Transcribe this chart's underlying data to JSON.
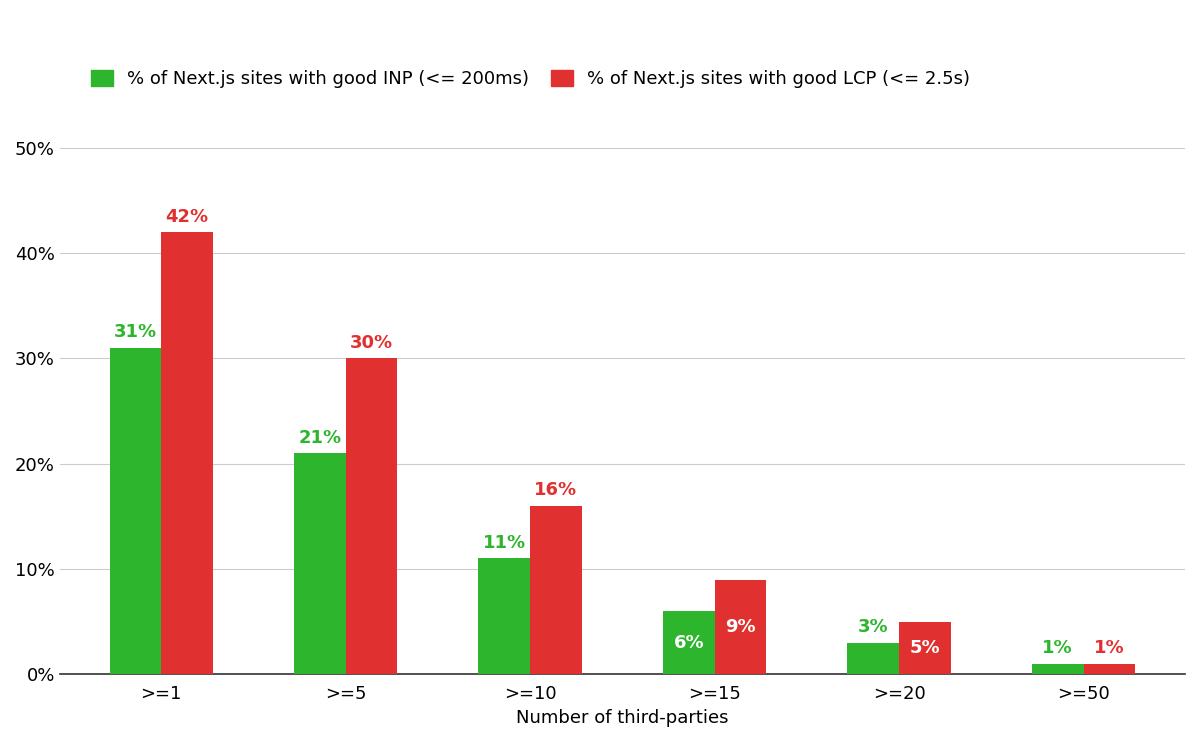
{
  "categories": [
    ">=1",
    ">=5",
    ">=10",
    ">=15",
    ">=20",
    ">=50"
  ],
  "inp_values": [
    31,
    21,
    11,
    6,
    3,
    1
  ],
  "lcp_values": [
    42,
    30,
    16,
    9,
    5,
    1
  ],
  "inp_color": "#2db52d",
  "lcp_color": "#e03030",
  "inp_label": "% of Next.js sites with good INP (<= 200ms)",
  "lcp_label": "% of Next.js sites with good LCP (<= 2.5s)",
  "xlabel": "Number of third-parties",
  "ylim": [
    0,
    52
  ],
  "yticks": [
    0,
    10,
    20,
    30,
    40,
    50
  ],
  "background_color": "#ffffff",
  "grid_color": "#cccccc",
  "bar_width": 0.28,
  "label_fontsize": 13,
  "tick_fontsize": 13,
  "annotation_fontsize": 13,
  "legend_fontsize": 13,
  "inp_label_inside": [
    6
  ],
  "lcp_label_inside": [
    9,
    5
  ]
}
